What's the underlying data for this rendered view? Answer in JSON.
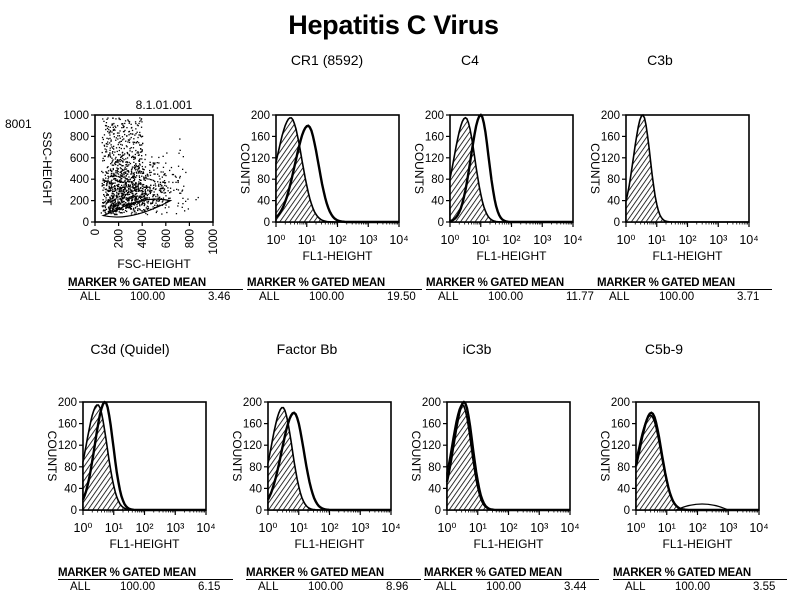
{
  "title": "Hepatitis C Virus",
  "chart_data": [
    {
      "type": "scatter",
      "id": "scatter",
      "title": "",
      "gate_label": "8.1.01.001",
      "side_label": "8001",
      "xlabel": "FSC-HEIGHT",
      "ylabel": "SSC-HEIGHT",
      "xlim": [
        0,
        1000
      ],
      "ylim": [
        0,
        1000
      ],
      "xticks": [
        "0",
        "200",
        "400",
        "600",
        "800",
        "1000"
      ],
      "yticks": [
        "0",
        "200",
        "400",
        "600",
        "800",
        "1000"
      ],
      "stats": {
        "header": "MARKER  % GATED  MEAN",
        "marker": "ALL",
        "gated": "100.00",
        "mean": "3.46"
      }
    },
    {
      "type": "area",
      "id": "cr1",
      "title": "CR1 (8592)",
      "xlabel": "FL1-HEIGHT",
      "ylabel": "COUNTS",
      "xscale": "log",
      "xlim": [
        1,
        10000
      ],
      "ylim": [
        0,
        200
      ],
      "xticks": [
        "10⁰",
        "10¹",
        "10²",
        "10³",
        "10⁴"
      ],
      "yticks": [
        "0",
        "40",
        "80",
        "120",
        "160",
        "200"
      ],
      "control": {
        "peak_x": 3.0,
        "peak_y": 195,
        "width": 0.45
      },
      "sample": {
        "peak_x": 11.0,
        "peak_y": 180,
        "width": 0.42
      },
      "stats": {
        "header": "MARKER  % GATED  MEAN",
        "marker": "ALL",
        "gated": "100.00",
        "mean": "19.50"
      }
    },
    {
      "type": "area",
      "id": "c4",
      "title": "C4",
      "xlabel": "FL1-HEIGHT",
      "ylabel": "COUNTS",
      "xscale": "log",
      "xlim": [
        1,
        10000
      ],
      "ylim": [
        0,
        200
      ],
      "xticks": [
        "10⁰",
        "10¹",
        "10²",
        "10³",
        "10⁴"
      ],
      "yticks": [
        "0",
        "40",
        "80",
        "120",
        "160",
        "200"
      ],
      "control": {
        "peak_x": 3.2,
        "peak_y": 195,
        "width": 0.38
      },
      "sample": {
        "peak_x": 10.0,
        "peak_y": 200,
        "width": 0.32
      },
      "stats": {
        "header": "MARKER  % GATED  MEAN",
        "marker": "ALL",
        "gated": "100.00",
        "mean": "11.77"
      }
    },
    {
      "type": "area",
      "id": "c3b",
      "title": "C3b",
      "xlabel": "FL1-HEIGHT",
      "ylabel": "COUNTS",
      "xscale": "log",
      "xlim": [
        1,
        10000
      ],
      "ylim": [
        0,
        200
      ],
      "xticks": [
        "10⁰",
        "10¹",
        "10²",
        "10³",
        "10⁴"
      ],
      "yticks": [
        "0",
        "40",
        "80",
        "120",
        "160",
        "200"
      ],
      "control": {
        "peak_x": 3.5,
        "peak_y": 200,
        "width": 0.3
      },
      "stats": {
        "header": "MARKER  % GATED  MEAN",
        "marker": "ALL",
        "gated": "100.00",
        "mean": "3.71"
      }
    },
    {
      "type": "area",
      "id": "c3d",
      "title": "C3d (Quidel)",
      "xlabel": "FL1-HEIGHT",
      "ylabel": "COUNTS",
      "xscale": "log",
      "xlim": [
        1,
        10000
      ],
      "ylim": [
        0,
        200
      ],
      "xticks": [
        "10⁰",
        "10¹",
        "10²",
        "10³",
        "10⁴"
      ],
      "yticks": [
        "0",
        "40",
        "80",
        "120",
        "160",
        "200"
      ],
      "control": {
        "peak_x": 3.0,
        "peak_y": 195,
        "width": 0.38
      },
      "sample": {
        "peak_x": 5.2,
        "peak_y": 200,
        "width": 0.33
      },
      "stats": {
        "header": "MARKER  % GATED  MEAN",
        "marker": "ALL",
        "gated": "100.00",
        "mean": "6.15"
      }
    },
    {
      "type": "area",
      "id": "factorbb",
      "title": "Factor Bb",
      "xlabel": "FL1-HEIGHT",
      "ylabel": "COUNTS",
      "xscale": "log",
      "xlim": [
        1,
        10000
      ],
      "ylim": [
        0,
        200
      ],
      "xticks": [
        "10⁰",
        "10¹",
        "10²",
        "10³",
        "10⁴"
      ],
      "yticks": [
        "0",
        "40",
        "80",
        "120",
        "160",
        "200"
      ],
      "control": {
        "peak_x": 3.0,
        "peak_y": 190,
        "width": 0.38
      },
      "sample": {
        "peak_x": 7.0,
        "peak_y": 180,
        "width": 0.4
      },
      "stats": {
        "header": "MARKER  % GATED  MEAN",
        "marker": "ALL",
        "gated": "100.00",
        "mean": "8.96"
      }
    },
    {
      "type": "area",
      "id": "ic3b",
      "title": "iC3b",
      "xlabel": "FL1-HEIGHT",
      "ylabel": "COUNTS",
      "xscale": "log",
      "xlim": [
        1,
        10000
      ],
      "ylim": [
        0,
        200
      ],
      "xticks": [
        "10⁰",
        "10¹",
        "10²",
        "10³",
        "10⁴"
      ],
      "yticks": [
        "0",
        "40",
        "80",
        "120",
        "160",
        "200"
      ],
      "control": {
        "peak_x": 3.2,
        "peak_y": 195,
        "width": 0.35
      },
      "sample": {
        "peak_x": 3.6,
        "peak_y": 200,
        "width": 0.34
      },
      "stats": {
        "header": "MARKER  % GATED  MEAN",
        "marker": "ALL",
        "gated": "100.00",
        "mean": "3.44"
      }
    },
    {
      "type": "area",
      "id": "c5b9",
      "title": "C5b-9",
      "xlabel": "FL1-HEIGHT",
      "ylabel": "COUNTS",
      "xscale": "log",
      "xlim": [
        1,
        10000
      ],
      "ylim": [
        0,
        200
      ],
      "xticks": [
        "10⁰",
        "10¹",
        "10²",
        "10³",
        "10⁴"
      ],
      "yticks": [
        "0",
        "40",
        "80",
        "120",
        "160",
        "200"
      ],
      "control": {
        "peak_x": 3.0,
        "peak_y": 175,
        "width": 0.42
      },
      "sample": {
        "peak_x": 3.2,
        "peak_y": 180,
        "width": 0.4
      },
      "stats": {
        "header": "MARKER  % GATED  MEAN",
        "marker": "ALL",
        "gated": "100.00",
        "mean": "3.55"
      }
    }
  ]
}
